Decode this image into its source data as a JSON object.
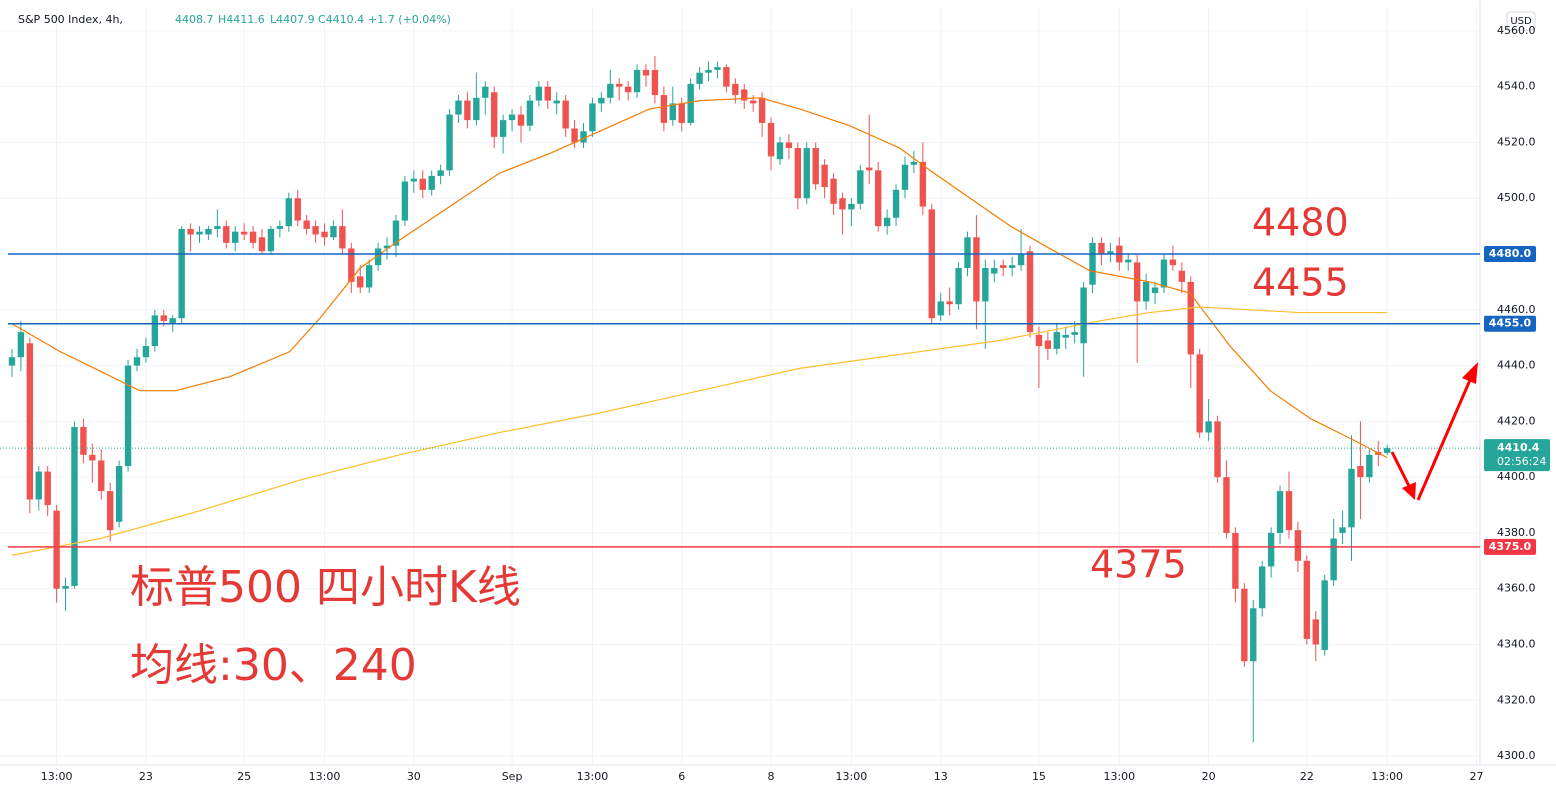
{
  "chart_data": {
    "type": "candlestick",
    "header": {
      "symbol": "S&P 500 Index, 4h,",
      "open": "4408.7",
      "high": "H4411.6",
      "low": "L4407.9",
      "close": "C4410.4",
      "change": "+1.7 (+0.04%)"
    },
    "currency": "USD",
    "colors": {
      "up": "#26a69a",
      "down": "#ef5350"
    },
    "grid": true,
    "xlim": [
      -1.34,
      164.39
    ],
    "xticks": [
      {
        "value": 5,
        "label": "13:00"
      },
      {
        "value": 15,
        "label": "23"
      },
      {
        "value": 26,
        "label": "25"
      },
      {
        "value": 35,
        "label": "13:00"
      },
      {
        "value": 45,
        "label": "30"
      },
      {
        "value": 56,
        "label": "Sep"
      },
      {
        "value": 65,
        "label": "13:00"
      },
      {
        "value": 75,
        "label": "6"
      },
      {
        "value": 85,
        "label": "8"
      },
      {
        "value": 94,
        "label": "13:00"
      },
      {
        "value": 104,
        "label": "13"
      },
      {
        "value": 115,
        "label": "15"
      },
      {
        "value": 124,
        "label": "13:00"
      },
      {
        "value": 134,
        "label": "20"
      },
      {
        "value": 145,
        "label": "22"
      },
      {
        "value": 154,
        "label": "13:00"
      },
      {
        "value": 164,
        "label": "27"
      }
    ],
    "ylim": [
      4296.8,
      4568.2
    ],
    "yticks": [
      {
        "value": 4300,
        "label": "4300.0"
      },
      {
        "value": 4320,
        "label": "4320.0"
      },
      {
        "value": 4340,
        "label": "4340.0"
      },
      {
        "value": 4360,
        "label": "4360.0"
      },
      {
        "value": 4380,
        "label": "4380.0"
      },
      {
        "value": 4400,
        "label": "4400.0"
      },
      {
        "value": 4420,
        "label": "4420.0"
      },
      {
        "value": 4440,
        "label": "4440.0"
      },
      {
        "value": 4460,
        "label": "4460.0"
      },
      {
        "value": 4480,
        "label": "4480.0"
      },
      {
        "value": 4500,
        "label": "4500.0"
      },
      {
        "value": 4520,
        "label": "4520.0"
      },
      {
        "value": 4540,
        "label": "4540.0"
      },
      {
        "value": 4560,
        "label": "4560.0"
      }
    ],
    "ohlc": [
      [
        4440,
        4446,
        4436,
        4443
      ],
      [
        4443,
        4456,
        4438,
        4452
      ],
      [
        4448,
        4450,
        4387,
        4392
      ],
      [
        4392,
        4404,
        4388,
        4402
      ],
      [
        4402,
        4404,
        4386,
        4390
      ],
      [
        4388,
        4390,
        4355,
        4360
      ],
      [
        4360,
        4364,
        4352,
        4361
      ],
      [
        4361,
        4420,
        4360,
        4418
      ],
      [
        4418,
        4421,
        4405,
        4408
      ],
      [
        4408,
        4412,
        4398,
        4406
      ],
      [
        4406,
        4410,
        4392,
        4395
      ],
      [
        4395,
        4398,
        4377,
        4381
      ],
      [
        4384,
        4406,
        4382,
        4404
      ],
      [
        4404,
        4442,
        4402,
        4440
      ],
      [
        4440,
        4446,
        4438,
        4443
      ],
      [
        4443,
        4450,
        4441,
        4447
      ],
      [
        4447,
        4460,
        4445,
        4458
      ],
      [
        4458,
        4460,
        4454,
        4456
      ],
      [
        4455,
        4458,
        4452,
        4457
      ],
      [
        4457,
        4490,
        4455,
        4489
      ],
      [
        4489,
        4491,
        4481,
        4487
      ],
      [
        4487,
        4490,
        4484,
        4488
      ],
      [
        4487,
        4490,
        4485,
        4489
      ],
      [
        4489,
        4496,
        4486,
        4490
      ],
      [
        4490,
        4492,
        4482,
        4484
      ],
      [
        4484,
        4490,
        4481,
        4488
      ],
      [
        4488,
        4491,
        4485,
        4487
      ],
      [
        4488,
        4490,
        4482,
        4484
      ],
      [
        4486,
        4489,
        4480,
        4481
      ],
      [
        4481,
        4490,
        4480,
        4489
      ],
      [
        4489,
        4492,
        4486,
        4490
      ],
      [
        4490,
        4502,
        4488,
        4500
      ],
      [
        4500,
        4503,
        4490,
        4492
      ],
      [
        4492,
        4494,
        4487,
        4489
      ],
      [
        4490,
        4492,
        4484,
        4487
      ],
      [
        4488,
        4491,
        4483,
        4486
      ],
      [
        4486,
        4492,
        4485,
        4490
      ],
      [
        4490,
        4496,
        4480,
        4482
      ],
      [
        4482,
        4484,
        4466,
        4470
      ],
      [
        4472,
        4476,
        4466,
        4468
      ],
      [
        4468,
        4478,
        4466,
        4476
      ],
      [
        4476,
        4484,
        4474,
        4482
      ],
      [
        4482,
        4486,
        4478,
        4483
      ],
      [
        4483,
        4494,
        4479,
        4492
      ],
      [
        4492,
        4508,
        4490,
        4506
      ],
      [
        4506,
        4510,
        4502,
        4507
      ],
      [
        4507,
        4510,
        4500,
        4503
      ],
      [
        4503,
        4510,
        4501,
        4508
      ],
      [
        4508,
        4512,
        4505,
        4510
      ],
      [
        4510,
        4532,
        4508,
        4530
      ],
      [
        4530,
        4537,
        4527,
        4535
      ],
      [
        4535,
        4538,
        4525,
        4528
      ],
      [
        4528,
        4545,
        4526,
        4536
      ],
      [
        4536,
        4542,
        4530,
        4540
      ],
      [
        4538,
        4540,
        4518,
        4522
      ],
      [
        4522,
        4530,
        4516,
        4528
      ],
      [
        4528,
        4532,
        4524,
        4530
      ],
      [
        4530,
        4533,
        4520,
        4526
      ],
      [
        4526,
        4537,
        4524,
        4535
      ],
      [
        4535,
        4542,
        4533,
        4540
      ],
      [
        4540,
        4542,
        4532,
        4535
      ],
      [
        4534,
        4538,
        4530,
        4535
      ],
      [
        4535,
        4537,
        4522,
        4525
      ],
      [
        4525,
        4528,
        4518,
        4520
      ],
      [
        4520,
        4527,
        4518,
        4524
      ],
      [
        4524,
        4536,
        4522,
        4534
      ],
      [
        4534,
        4538,
        4531,
        4536
      ],
      [
        4536,
        4546,
        4534,
        4541
      ],
      [
        4541,
        4543,
        4535,
        4540
      ],
      [
        4540,
        4542,
        4535,
        4538
      ],
      [
        4538,
        4548,
        4536,
        4546
      ],
      [
        4546,
        4548,
        4540,
        4544
      ],
      [
        4546,
        4551,
        4534,
        4537
      ],
      [
        4537,
        4540,
        4524,
        4527
      ],
      [
        4528,
        4540,
        4526,
        4534
      ],
      [
        4534,
        4536,
        4524,
        4527
      ],
      [
        4527,
        4543,
        4526,
        4541
      ],
      [
        4541,
        4547,
        4539,
        4545
      ],
      [
        4545,
        4549,
        4542,
        4546
      ],
      [
        4546,
        4549,
        4543,
        4547
      ],
      [
        4547,
        4548,
        4538,
        4540
      ],
      [
        4541,
        4543,
        4534,
        4537
      ],
      [
        4539,
        4541,
        4532,
        4535
      ],
      [
        4535,
        4537,
        4531,
        4534
      ],
      [
        4536,
        4538,
        4522,
        4527
      ],
      [
        4527,
        4529,
        4510,
        4515
      ],
      [
        4514,
        4522,
        4512,
        4520
      ],
      [
        4520,
        4523,
        4514,
        4518
      ],
      [
        4518,
        4520,
        4496,
        4500
      ],
      [
        4500,
        4520,
        4498,
        4518
      ],
      [
        4518,
        4520,
        4503,
        4505
      ],
      [
        4512,
        4514,
        4500,
        4504
      ],
      [
        4507,
        4509,
        4494,
        4498
      ],
      [
        4500,
        4502,
        4487,
        4496
      ],
      [
        4496,
        4500,
        4490,
        4498
      ],
      [
        4498,
        4512,
        4496,
        4510
      ],
      [
        4511,
        4530,
        4505,
        4510
      ],
      [
        4510,
        4513,
        4488,
        4490
      ],
      [
        4490,
        4496,
        4487,
        4493
      ],
      [
        4493,
        4505,
        4490,
        4503
      ],
      [
        4503,
        4515,
        4500,
        4512
      ],
      [
        4512,
        4517,
        4509,
        4513
      ],
      [
        4513,
        4520,
        4494,
        4497
      ],
      [
        4496,
        4498,
        4455,
        4457
      ],
      [
        4458,
        4466,
        4456,
        4463
      ],
      [
        4463,
        4468,
        4458,
        4462
      ],
      [
        4462,
        4477,
        4460,
        4475
      ],
      [
        4475,
        4488,
        4472,
        4486
      ],
      [
        4486,
        4494,
        4453,
        4463
      ],
      [
        4463,
        4478,
        4446,
        4475
      ],
      [
        4473,
        4478,
        4470,
        4475
      ],
      [
        4476,
        4478,
        4472,
        4475
      ],
      [
        4475,
        4479,
        4472,
        4476
      ],
      [
        4476,
        4489,
        4474,
        4480
      ],
      [
        4481,
        4483,
        4450,
        4452
      ],
      [
        4451,
        4454,
        4432,
        4447
      ],
      [
        4449,
        4452,
        4442,
        4446
      ],
      [
        4446,
        4455,
        4444,
        4452
      ],
      [
        4450,
        4454,
        4446,
        4451
      ],
      [
        4451,
        4456,
        4448,
        4452
      ],
      [
        4448,
        4470,
        4436,
        4468
      ],
      [
        4469,
        4486,
        4466,
        4484
      ],
      [
        4484,
        4486,
        4476,
        4480
      ],
      [
        4480,
        4484,
        4477,
        4481
      ],
      [
        4483,
        4486,
        4474,
        4477
      ],
      [
        4477,
        4480,
        4474,
        4478
      ],
      [
        4477,
        4480,
        4441,
        4463
      ],
      [
        4463,
        4473,
        4460,
        4470
      ],
      [
        4466,
        4470,
        4462,
        4468
      ],
      [
        4468,
        4480,
        4466,
        4478
      ],
      [
        4478,
        4483,
        4474,
        4476
      ],
      [
        4474,
        4477,
        4466,
        4470
      ],
      [
        4470,
        4472,
        4432,
        4444
      ],
      [
        4444,
        4446,
        4414,
        4416
      ],
      [
        4416,
        4428,
        4413,
        4420
      ],
      [
        4420,
        4422,
        4398,
        4400
      ],
      [
        4400,
        4406,
        4378,
        4380
      ],
      [
        4380,
        4382,
        4355,
        4360
      ],
      [
        4360,
        4362,
        4332,
        4334
      ],
      [
        4334,
        4356,
        4305,
        4353
      ],
      [
        4353,
        4370,
        4350,
        4368
      ],
      [
        4368,
        4382,
        4364,
        4380
      ],
      [
        4380,
        4397,
        4376,
        4395
      ],
      [
        4395,
        4402,
        4378,
        4381
      ],
      [
        4381,
        4384,
        4366,
        4370
      ],
      [
        4370,
        4372,
        4340,
        4342
      ],
      [
        4349,
        4352,
        4334,
        4340
      ],
      [
        4338,
        4365,
        4336,
        4363
      ],
      [
        4363,
        4385,
        4361,
        4378
      ],
      [
        4380,
        4388,
        4376,
        4382
      ],
      [
        4382,
        4415,
        4370,
        4403
      ],
      [
        4404,
        4420,
        4385,
        4400
      ],
      [
        4400,
        4410,
        4398,
        4408
      ],
      [
        4409,
        4413,
        4404,
        4408
      ],
      [
        4408.7,
        4411.6,
        4407.9,
        4410.4
      ]
    ],
    "moving_averages": [
      {
        "color": "#f57c00",
        "x": [
          0,
          5.4,
          9.9,
          14.3,
          18.3,
          24.4,
          31.1,
          34.5,
          39,
          43.4,
          49,
          54.6,
          60.2,
          65.8,
          71.4,
          77,
          83.8,
          88.2,
          93.8,
          99.4,
          102.8,
          107.3,
          111.8,
          116.2,
          120.7,
          127.4,
          131.9,
          136.4,
          140.9,
          145.4,
          149.8,
          154
        ],
        "values": [
          4455,
          4445,
          4438,
          4431,
          4431,
          4436,
          4445,
          4457,
          4475,
          4485,
          4497,
          4509,
          4516,
          4524,
          4532,
          4535,
          4536,
          4532,
          4526,
          4518,
          4510,
          4500,
          4490,
          4482,
          4474,
          4470,
          4466,
          4447,
          4431,
          4421,
          4414,
          4407
        ]
      },
      {
        "color": "#fbc02d",
        "x": [
          0,
          9.9,
          21.1,
          32.3,
          43.4,
          54.6,
          65.8,
          77,
          88.2,
          99.4,
          110.6,
          121.8,
          127.4,
          133,
          138.6,
          144.2,
          154
        ],
        "values": [
          4372,
          4378,
          4388,
          4399,
          4408,
          4416,
          4423,
          4431,
          4439,
          4444,
          4449,
          4456,
          4459,
          4461,
          4460,
          4459,
          4459
        ]
      }
    ],
    "levels": [
      {
        "value": 4480,
        "label": "4480.0",
        "color": "#1565c0",
        "annotation": "4480"
      },
      {
        "value": 4455,
        "label": "4455.0",
        "color": "#1565c0",
        "annotation": "4455"
      },
      {
        "value": 4375,
        "label": "4375.0",
        "color": "#f23645",
        "annotation": "4375"
      }
    ],
    "last_price": {
      "value": 4410.4,
      "label": "4410.4",
      "countdown": "02:56:24"
    },
    "annotations": [
      "标普500 四小时K线",
      "均线:30、240"
    ]
  }
}
